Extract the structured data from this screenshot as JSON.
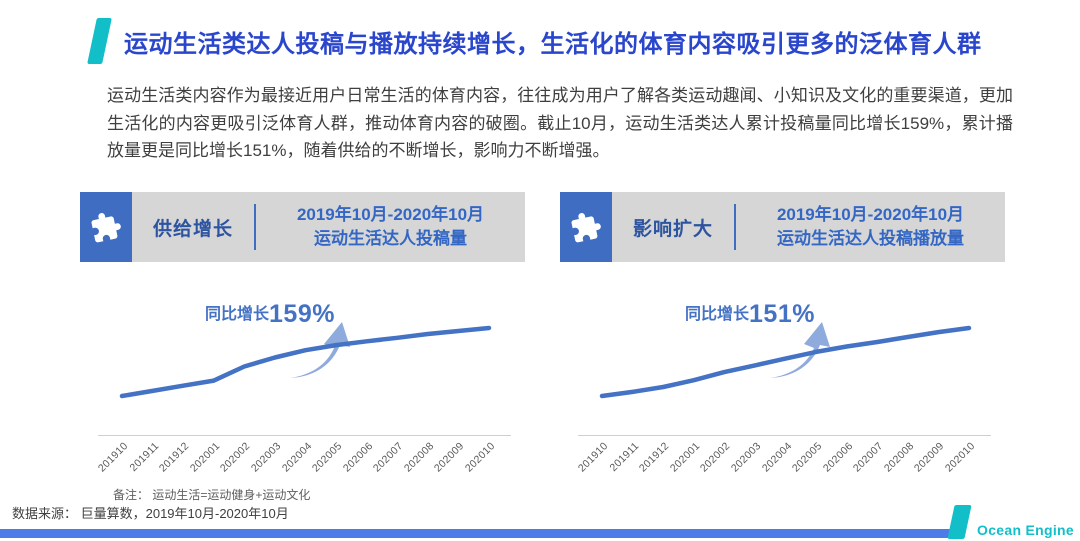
{
  "slide": {
    "title": "运动生活类达人投稿与播放持续增长，生活化的体育内容吸引更多的泛体育人群",
    "paragraph": "运动生活类内容作为最接近用户日常生活的体育内容，往往成为用户了解各类运动趣闻、小知识及文化的重要渠道，更加生活化的内容更吸引泛体育人群，推动体育内容的破圈。截止10月，运动生活类达人累计投稿量同比增长159%，累计播放量更是同比增长151%，随着供给的不断增长，影响力不断增强。",
    "note": "备注： 运动生活=运动健身+运动文化",
    "source": "数据来源： 巨量算数，2019年10月-2020年10月",
    "logo_text": "Ocean Engine"
  },
  "panels": [
    {
      "label": "供给增长",
      "period": "2019年10月-2020年10月",
      "metric": "运动生活达人投稿量",
      "growth_prefix": "同比增长",
      "growth_value": "159%"
    },
    {
      "label": "影响扩大",
      "period": "2019年10月-2020年10月",
      "metric": "运动生活达人投稿播放量",
      "growth_prefix": "同比增长",
      "growth_value": "151%"
    }
  ],
  "icons": {
    "panel_icon": "puzzle-icon",
    "growth_arrow": "curved-arrow-up-right-icon",
    "title_accent": "teal-parallelogram-mark",
    "logo_mark": "teal-parallelogram-mark"
  },
  "colors": {
    "accent_teal": "#12bfc9",
    "title_blue": "#2a46cc",
    "header_blue": "#3e6dc2",
    "header_gray": "#d6d6d6",
    "panel_label_navy": "#2d54a0",
    "dates_blue": "#3467c4",
    "line_blue": "#4472c4",
    "arrow_light_blue": "#8faadc",
    "axis_label_gray": "#595959",
    "footer_bar_blue": "#4b7ce8"
  },
  "chart_data": [
    {
      "type": "line",
      "title": "2019年10月-2020年10月 运动生活达人投稿量",
      "categories": [
        "201910",
        "201911",
        "201912",
        "202001",
        "202002",
        "202003",
        "202004",
        "202005",
        "202006",
        "202007",
        "202008",
        "202009",
        "202010"
      ],
      "values": [
        100,
        112,
        124,
        136,
        169,
        190,
        207,
        219,
        228,
        236,
        245,
        252,
        259
      ],
      "value_basis": "estimated index, 201910=100 (chart shows no y-axis; values read from curve height)",
      "annotation": "同比增长159%",
      "xlabel": "",
      "ylabel": "",
      "legend": "none",
      "grid": false
    },
    {
      "type": "line",
      "title": "2019年10月-2020年10月 运动生活达人投稿播放量",
      "categories": [
        "201910",
        "201911",
        "201912",
        "202001",
        "202002",
        "202003",
        "202004",
        "202005",
        "202006",
        "202007",
        "202008",
        "202009",
        "202010"
      ],
      "values": [
        100,
        109,
        120,
        135,
        153,
        168,
        183,
        198,
        210,
        220,
        231,
        242,
        251
      ],
      "value_basis": "estimated index, 201910=100 (chart shows no y-axis; values read from curve height)",
      "annotation": "同比增长151%",
      "xlabel": "",
      "ylabel": "",
      "legend": "none",
      "grid": false
    }
  ]
}
